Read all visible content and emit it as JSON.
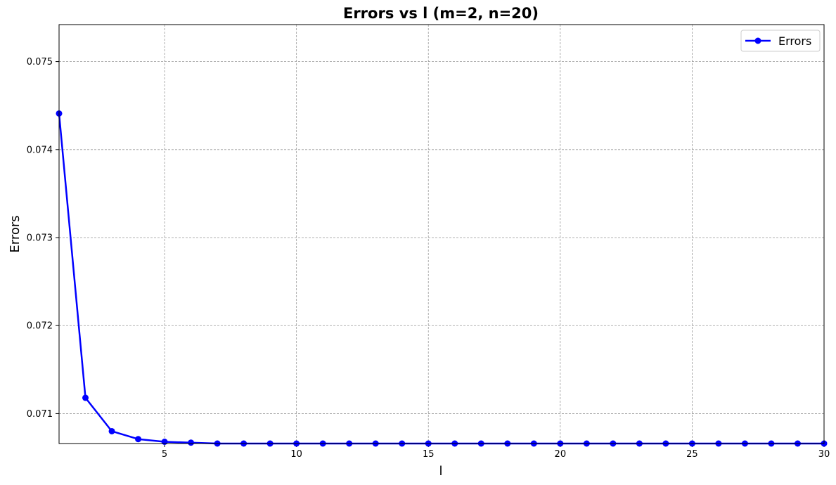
{
  "chart_data": {
    "type": "line",
    "title": "Errors vs l (m=2, n=20)",
    "xlabel": "l",
    "ylabel": "Errors",
    "xlim": [
      1,
      30
    ],
    "ylim": [
      0.07066,
      0.07542
    ],
    "xticks": [
      5,
      10,
      15,
      20,
      25,
      30
    ],
    "yticks": [
      0.071,
      0.072,
      0.073,
      0.074,
      0.075
    ],
    "xtick_labels": [
      "5",
      "10",
      "15",
      "20",
      "25",
      "30"
    ],
    "ytick_labels": [
      "0.071",
      "0.072",
      "0.073",
      "0.074",
      "0.075"
    ],
    "grid": true,
    "legend_position": "top-right",
    "series": [
      {
        "name": "Errors",
        "color": "#0000ff",
        "marker": "circle",
        "x": [
          1,
          2,
          3,
          4,
          5,
          6,
          7,
          8,
          9,
          10,
          11,
          12,
          13,
          14,
          15,
          16,
          17,
          18,
          19,
          20,
          21,
          22,
          23,
          24,
          25,
          26,
          27,
          28,
          29,
          30
        ],
        "values": [
          0.07441,
          0.07118,
          0.0708,
          0.07071,
          0.07068,
          0.07067,
          0.07066,
          0.07066,
          0.07066,
          0.07066,
          0.07066,
          0.07066,
          0.07066,
          0.07066,
          0.07066,
          0.07066,
          0.07066,
          0.07066,
          0.07066,
          0.07066,
          0.07066,
          0.07066,
          0.07066,
          0.07066,
          0.07066,
          0.07066,
          0.07066,
          0.07066,
          0.07066,
          0.07066
        ]
      }
    ]
  }
}
